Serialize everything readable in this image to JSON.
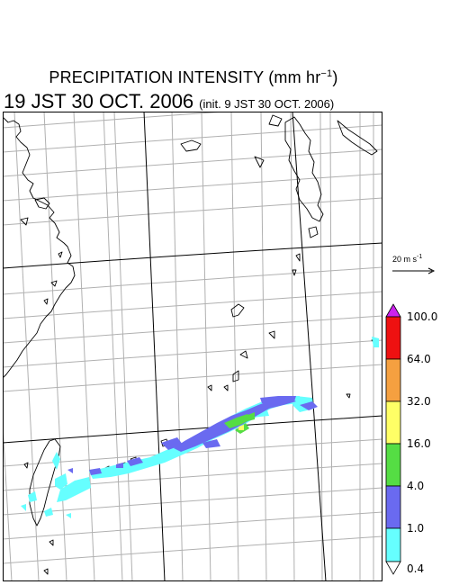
{
  "title": {
    "main": "PRECIPITATION INTENSITY (mm hr",
    "unit_sup": "−1",
    "tail": ")"
  },
  "subtitle": {
    "valid_time": "19 JST 30 OCT. 2006",
    "init_time": "(init. 9 JST 30 OCT. 2006)"
  },
  "reference_vector": {
    "label": "20 m s",
    "unit_sup": "-1"
  },
  "legend": {
    "levels": [
      "100.0",
      "64.0",
      "32.0",
      "16.0",
      "4.0",
      "1.0",
      "0.4"
    ],
    "colors": {
      "over": "#cc22ee",
      "64-100": "#ee1111",
      "32-64": "#f5a040",
      "16-32": "#ffff66",
      "4-16": "#55dd44",
      "1-4": "#6a6af0",
      "0.4-1": "#66ffff",
      "under": "#ffffff"
    }
  },
  "map": {
    "grid_color": "#b0b0b0",
    "coast_color": "#000000",
    "frame_color": "#000000"
  }
}
